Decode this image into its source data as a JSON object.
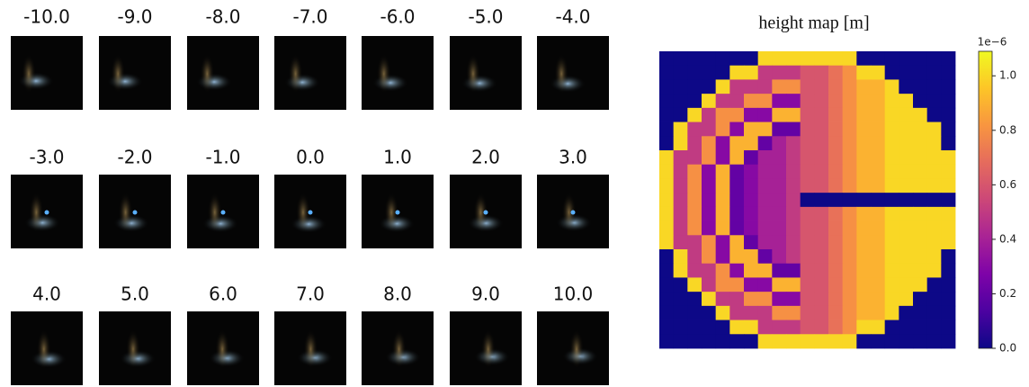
{
  "panels": {
    "labels": [
      "-10.0",
      "-9.0",
      "-8.0",
      "-7.0",
      "-6.0",
      "-5.0",
      "-4.0",
      "-3.0",
      "-2.0",
      "-1.0",
      "0.0",
      "1.0",
      "2.0",
      "3.0",
      "4.0",
      "5.0",
      "6.0",
      "7.0",
      "8.0",
      "9.0",
      "10.0"
    ]
  },
  "chart_data": {
    "type": "heatmap",
    "title": "height map [m]",
    "colormap": "plasma",
    "colorbar_offset": "1e−6",
    "clim": [
      0,
      1.09
    ],
    "cticks": [
      {
        "value": 0,
        "label": "0.0"
      },
      {
        "value": 0.2,
        "label": "0.2"
      },
      {
        "value": 0.4,
        "label": "0.4"
      },
      {
        "value": 0.6,
        "label": "0.6"
      },
      {
        "value": 0.8,
        "label": "0.8"
      },
      {
        "value": 1,
        "label": "1.0"
      }
    ],
    "z": [
      [
        0,
        0,
        0,
        0,
        0,
        0,
        0,
        1,
        1,
        1,
        1,
        1,
        1,
        1,
        0,
        0,
        0,
        0,
        0,
        0,
        0
      ],
      [
        0,
        0,
        0,
        0,
        0,
        1,
        1,
        0.5,
        0.5,
        0.5,
        0.6,
        0.6,
        0.7,
        0.8,
        1,
        1,
        0,
        0,
        0,
        0,
        0
      ],
      [
        0,
        0,
        0,
        0,
        1,
        0.5,
        0.5,
        0.5,
        0.8,
        0.8,
        0.6,
        0.6,
        0.7,
        0.8,
        0.9,
        0.9,
        1,
        0,
        0,
        0,
        0
      ],
      [
        0,
        0,
        0,
        1,
        0.5,
        0.5,
        0.8,
        0.8,
        0.3,
        0.3,
        0.6,
        0.6,
        0.7,
        0.8,
        0.9,
        0.9,
        1,
        1,
        0,
        0,
        0
      ],
      [
        0,
        0,
        1,
        0.5,
        0.8,
        0.8,
        0.3,
        0.3,
        0.9,
        0.9,
        0.6,
        0.6,
        0.7,
        0.8,
        0.9,
        0.9,
        1,
        1,
        1,
        0,
        0
      ],
      [
        0,
        1,
        0.5,
        0.5,
        0.8,
        0.3,
        0.9,
        0.9,
        0.2,
        0.2,
        0.6,
        0.6,
        0.7,
        0.8,
        0.9,
        0.9,
        1,
        1,
        1,
        1,
        0
      ],
      [
        0,
        1,
        0.5,
        0.8,
        0.3,
        0.9,
        0.9,
        0.2,
        0.4,
        0.5,
        0.6,
        0.6,
        0.7,
        0.8,
        0.9,
        0.9,
        1,
        1,
        1,
        1,
        0
      ],
      [
        1,
        0.5,
        0.5,
        0.8,
        0.3,
        0.9,
        0.2,
        0.4,
        0.4,
        0.5,
        0.6,
        0.6,
        0.7,
        0.8,
        0.9,
        0.9,
        1,
        1,
        1,
        1,
        1
      ],
      [
        1,
        0.5,
        0.8,
        0.3,
        0.9,
        0.2,
        0.3,
        0.4,
        0.4,
        0.5,
        0.6,
        0.6,
        0.7,
        0.8,
        0.9,
        0.9,
        1,
        1,
        1,
        1,
        1
      ],
      [
        1,
        0.5,
        0.8,
        0.3,
        0.9,
        0.2,
        0.3,
        0.4,
        0.4,
        0.5,
        0.6,
        0.6,
        0.7,
        0.8,
        0.9,
        0.9,
        1,
        1,
        1,
        1,
        1
      ],
      [
        1,
        0.5,
        0.8,
        0.3,
        0.9,
        0.2,
        0.3,
        0.4,
        0.4,
        0.5,
        0,
        0,
        0,
        0,
        0,
        0,
        0,
        0,
        0,
        0,
        0
      ],
      [
        1,
        0.5,
        0.8,
        0.3,
        0.9,
        0.2,
        0.3,
        0.4,
        0.4,
        0.5,
        0.6,
        0.6,
        0.7,
        0.8,
        0.9,
        0.9,
        1,
        1,
        1,
        1,
        1
      ],
      [
        1,
        0.5,
        0.8,
        0.3,
        0.9,
        0.2,
        0.3,
        0.4,
        0.4,
        0.5,
        0.6,
        0.6,
        0.7,
        0.8,
        0.9,
        0.9,
        1,
        1,
        1,
        1,
        1
      ],
      [
        1,
        0.5,
        0.5,
        0.8,
        0.3,
        0.9,
        0.2,
        0.4,
        0.4,
        0.5,
        0.6,
        0.6,
        0.7,
        0.8,
        0.9,
        0.9,
        1,
        1,
        1,
        1,
        1
      ],
      [
        0,
        1,
        0.5,
        0.8,
        0.3,
        0.9,
        0.9,
        0.2,
        0.4,
        0.5,
        0.6,
        0.6,
        0.7,
        0.8,
        0.9,
        0.9,
        1,
        1,
        1,
        1,
        0
      ],
      [
        0,
        1,
        0.5,
        0.5,
        0.8,
        0.3,
        0.9,
        0.9,
        0.2,
        0.2,
        0.6,
        0.6,
        0.7,
        0.8,
        0.9,
        0.9,
        1,
        1,
        1,
        1,
        0
      ],
      [
        0,
        0,
        1,
        0.5,
        0.8,
        0.8,
        0.3,
        0.3,
        0.9,
        0.9,
        0.6,
        0.6,
        0.7,
        0.8,
        0.9,
        0.9,
        1,
        1,
        1,
        0,
        0
      ],
      [
        0,
        0,
        0,
        1,
        0.5,
        0.5,
        0.8,
        0.8,
        0.3,
        0.3,
        0.6,
        0.6,
        0.7,
        0.8,
        0.9,
        0.9,
        1,
        1,
        0,
        0,
        0
      ],
      [
        0,
        0,
        0,
        0,
        1,
        0.5,
        0.5,
        0.5,
        0.8,
        0.8,
        0.6,
        0.6,
        0.7,
        0.8,
        0.9,
        0.9,
        1,
        0,
        0,
        0,
        0
      ],
      [
        0,
        0,
        0,
        0,
        0,
        1,
        1,
        0.5,
        0.5,
        0.5,
        0.6,
        0.6,
        0.7,
        0.8,
        1,
        1,
        0,
        0,
        0,
        0,
        0
      ],
      [
        0,
        0,
        0,
        0,
        0,
        0,
        0,
        1,
        1,
        1,
        1,
        1,
        1,
        1,
        0,
        0,
        0,
        0,
        0,
        0,
        0
      ]
    ]
  }
}
